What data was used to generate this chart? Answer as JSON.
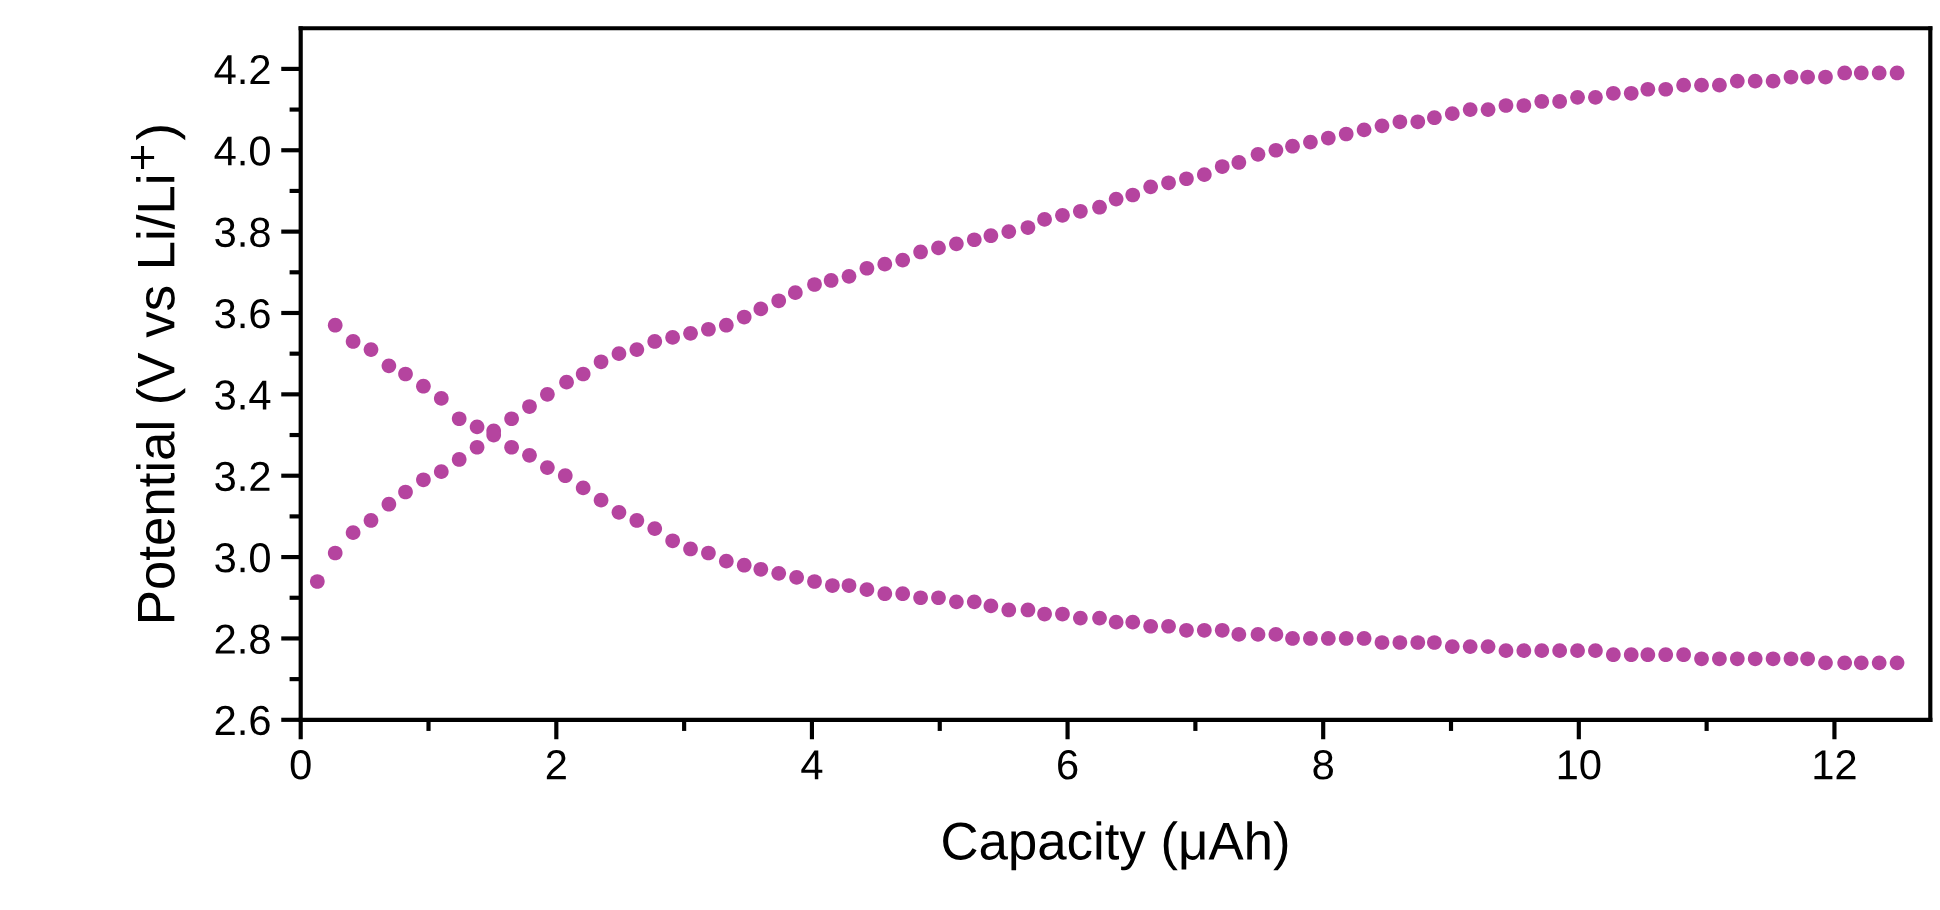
{
  "chart_data": {
    "type": "scatter",
    "xlabel": "Capacity (μAh)",
    "ylabel": "Potential (V vs Li/Li$^{+}$)",
    "marker": "circle",
    "grid": false,
    "xlim": [
      0,
      12.75
    ],
    "ylim": [
      2.6,
      4.3
    ],
    "xticks": [
      0,
      {
        "value": 1,
        "label": null
      },
      2,
      {
        "value": 3,
        "label": null
      },
      4,
      {
        "value": 5,
        "label": null
      },
      6,
      {
        "value": 7,
        "label": null
      },
      8,
      {
        "value": 9,
        "label": null
      },
      10,
      {
        "value": 11,
        "label": null
      },
      12
    ],
    "yticks": [
      2.6,
      {
        "value": 2.7,
        "label": null
      },
      2.8,
      {
        "value": 2.9,
        "label": null
      },
      {
        "value": 3.0,
        "label": "3.0"
      },
      {
        "value": 3.1,
        "label": null
      },
      3.2,
      {
        "value": 3.3,
        "label": null
      },
      3.4,
      {
        "value": 3.5,
        "label": null
      },
      3.6,
      {
        "value": 3.7,
        "label": null
      },
      3.8,
      {
        "value": 3.9,
        "label": null
      },
      {
        "value": 4.0,
        "label": "4.0"
      },
      {
        "value": 4.1,
        "label": null
      },
      4.2
    ],
    "series": [
      {
        "color": "#b5449f",
        "x": [
          0.13,
          0.27,
          0.41,
          0.55,
          0.69,
          0.82,
          0.96,
          1.1,
          1.24,
          1.38,
          1.51,
          1.65,
          1.79,
          1.93,
          2.08,
          2.21,
          2.35,
          2.49,
          2.63,
          2.77,
          2.91,
          3.05,
          3.19,
          3.33,
          3.47,
          3.6,
          3.74,
          3.87,
          4.02,
          4.15,
          4.29,
          4.43,
          4.57,
          4.71,
          4.85,
          4.99,
          5.13,
          5.27,
          5.4,
          5.54,
          5.69,
          5.82,
          5.96,
          6.1,
          6.25,
          6.38,
          6.51,
          6.65,
          6.79,
          6.93,
          7.07,
          7.21,
          7.34,
          7.49,
          7.63,
          7.76,
          7.9,
          8.04,
          8.18,
          8.32,
          8.46,
          8.6,
          8.74,
          8.87,
          9.01,
          9.15,
          9.29,
          9.43,
          9.57,
          9.71,
          9.85,
          9.99,
          10.13,
          10.27,
          10.41,
          10.54,
          10.68,
          10.82,
          10.96,
          11.1,
          11.24,
          11.38,
          11.52,
          11.66,
          11.79,
          11.93,
          12.08,
          12.21,
          12.35,
          12.49
        ],
        "values": [
          2.94,
          3.01,
          3.06,
          3.09,
          3.13,
          3.16,
          3.19,
          3.21,
          3.24,
          3.27,
          3.31,
          3.34,
          3.37,
          3.4,
          3.43,
          3.45,
          3.48,
          3.5,
          3.51,
          3.53,
          3.54,
          3.55,
          3.56,
          3.57,
          3.59,
          3.61,
          3.63,
          3.65,
          3.67,
          3.68,
          3.69,
          3.71,
          3.72,
          3.73,
          3.75,
          3.76,
          3.77,
          3.78,
          3.79,
          3.8,
          3.81,
          3.83,
          3.84,
          3.85,
          3.86,
          3.88,
          3.89,
          3.91,
          3.92,
          3.93,
          3.94,
          3.96,
          3.97,
          3.99,
          4.0,
          4.01,
          4.02,
          4.03,
          4.04,
          4.05,
          4.06,
          4.07,
          4.07,
          4.08,
          4.09,
          4.1,
          4.1,
          4.11,
          4.11,
          4.12,
          4.12,
          4.13,
          4.13,
          4.14,
          4.14,
          4.15,
          4.15,
          4.16,
          4.16,
          4.16,
          4.17,
          4.17,
          4.17,
          4.18,
          4.18,
          4.18,
          4.19,
          4.19,
          4.19,
          4.19
        ]
      },
      {
        "color": "#b5449f",
        "x": [
          0.27,
          0.41,
          0.55,
          0.69,
          0.82,
          0.96,
          1.1,
          1.24,
          1.38,
          1.51,
          1.65,
          1.79,
          1.93,
          2.07,
          2.21,
          2.35,
          2.49,
          2.63,
          2.77,
          2.91,
          3.05,
          3.19,
          3.33,
          3.47,
          3.6,
          3.74,
          3.88,
          4.02,
          4.16,
          4.29,
          4.43,
          4.57,
          4.71,
          4.85,
          4.99,
          5.13,
          5.27,
          5.4,
          5.54,
          5.69,
          5.82,
          5.96,
          6.1,
          6.25,
          6.38,
          6.51,
          6.65,
          6.79,
          6.93,
          7.07,
          7.21,
          7.34,
          7.49,
          7.63,
          7.76,
          7.9,
          8.04,
          8.18,
          8.32,
          8.46,
          8.6,
          8.74,
          8.87,
          9.01,
          9.15,
          9.29,
          9.43,
          9.57,
          9.71,
          9.85,
          9.99,
          10.13,
          10.27,
          10.41,
          10.54,
          10.68,
          10.82,
          10.96,
          11.1,
          11.24,
          11.38,
          11.52,
          11.66,
          11.79,
          11.93,
          12.08,
          12.21,
          12.35,
          12.49
        ],
        "values": [
          3.57,
          3.53,
          3.51,
          3.47,
          3.45,
          3.42,
          3.39,
          3.34,
          3.32,
          3.3,
          3.27,
          3.25,
          3.22,
          3.2,
          3.17,
          3.14,
          3.11,
          3.09,
          3.07,
          3.04,
          3.02,
          3.01,
          2.99,
          2.98,
          2.97,
          2.96,
          2.95,
          2.94,
          2.93,
          2.93,
          2.92,
          2.91,
          2.91,
          2.9,
          2.9,
          2.89,
          2.89,
          2.88,
          2.87,
          2.87,
          2.86,
          2.86,
          2.85,
          2.85,
          2.84,
          2.84,
          2.83,
          2.83,
          2.82,
          2.82,
          2.82,
          2.81,
          2.81,
          2.81,
          2.8,
          2.8,
          2.8,
          2.8,
          2.8,
          2.79,
          2.79,
          2.79,
          2.79,
          2.78,
          2.78,
          2.78,
          2.77,
          2.77,
          2.77,
          2.77,
          2.77,
          2.77,
          2.76,
          2.76,
          2.76,
          2.76,
          2.76,
          2.75,
          2.75,
          2.75,
          2.75,
          2.75,
          2.75,
          2.75,
          2.74,
          2.74,
          2.74,
          2.74,
          2.74
        ]
      }
    ]
  }
}
